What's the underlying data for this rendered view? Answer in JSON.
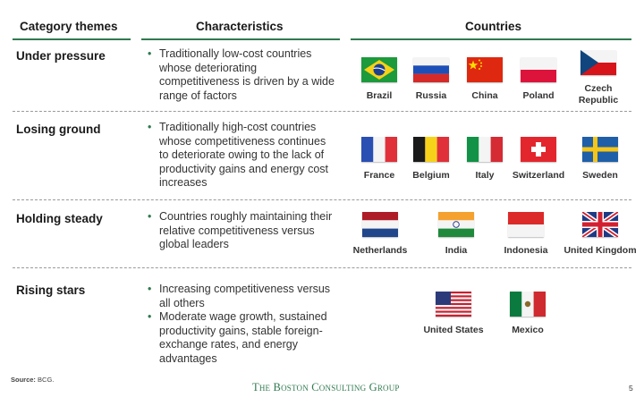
{
  "headers": {
    "themes": "Category themes",
    "characteristics": "Characteristics",
    "countries": "Countries"
  },
  "rows": [
    {
      "theme": "Under pressure",
      "bullets": [
        "Traditionally low-cost countries whose deteriorating competitiveness is driven by a wide range of factors"
      ],
      "countries": [
        "Brazil",
        "Russia",
        "China",
        "Poland",
        "Czech Republic"
      ]
    },
    {
      "theme": "Losing ground",
      "bullets": [
        "Traditionally high-cost countries whose competitiveness continues to deteriorate owing to the lack of productivity gains and energy cost increases"
      ],
      "countries": [
        "France",
        "Belgium",
        "Italy",
        "Switzerland",
        "Sweden"
      ]
    },
    {
      "theme": "Holding steady",
      "bullets": [
        "Countries roughly maintaining their relative competitiveness versus global leaders"
      ],
      "countries": [
        "Netherlands",
        "India",
        "Indonesia",
        "United Kingdom"
      ]
    },
    {
      "theme": "Rising stars",
      "bullets": [
        "Increasing competitiveness versus all others",
        "Moderate wage growth, sustained productivity gains, stable foreign-exchange rates, and energy advantages"
      ],
      "countries": [
        "United States",
        "Mexico"
      ]
    }
  ],
  "footer": {
    "source_label": "Source:",
    "source_text": "BCG.",
    "logo": "The Boston Consulting Group",
    "page_number": "5"
  }
}
